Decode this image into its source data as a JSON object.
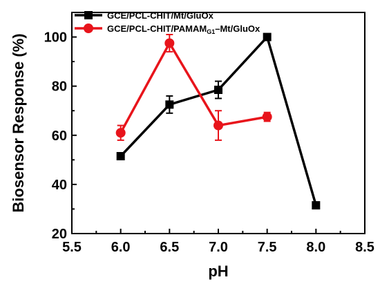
{
  "chart_data": {
    "type": "line",
    "xlabel": "pH",
    "ylabel": "Biosensor Response (%)",
    "xlim": [
      5.5,
      8.5
    ],
    "ylim": [
      20,
      110
    ],
    "xticks": [
      5.5,
      6.0,
      6.5,
      7.0,
      7.5,
      8.0,
      8.5
    ],
    "xtick_labels": [
      "5.5",
      "6.0",
      "6.5",
      "7.0",
      "7.5",
      "8.0",
      "8.5"
    ],
    "yticks": [
      20,
      40,
      60,
      80,
      100
    ],
    "ytick_labels": [
      "20",
      "40",
      "60",
      "80",
      "100"
    ],
    "grid": false,
    "legend_position": "top-left",
    "series": [
      {
        "name": "GCE/PCL-CHIT/Mt/GluOx",
        "legend_parts": [
          {
            "text": "GCE/PCL-CHIT/Mt/GluOx",
            "sub": false
          }
        ],
        "color": "#000000",
        "marker": "square",
        "x": [
          6.0,
          6.5,
          7.0,
          7.5,
          8.0
        ],
        "y": [
          51.5,
          72.5,
          78.5,
          100,
          31.5
        ],
        "err": [
          0.8,
          3.5,
          3.5,
          0.5,
          0.8
        ]
      },
      {
        "name": "GCE/PCL-CHIT/PAMAMG1–Mt/GluOx",
        "legend_parts": [
          {
            "text": "GCE/PCL-CHIT/PAMAM",
            "sub": false
          },
          {
            "text": "G1",
            "sub": true
          },
          {
            "text": "–Mt/GluOx",
            "sub": false
          }
        ],
        "color": "#e8141b",
        "marker": "circle",
        "x": [
          6.0,
          6.5,
          7.0,
          7.5
        ],
        "y": [
          61,
          97.5,
          64,
          67.5
        ],
        "err": [
          3.0,
          3.5,
          6.0,
          1.8
        ]
      }
    ]
  }
}
